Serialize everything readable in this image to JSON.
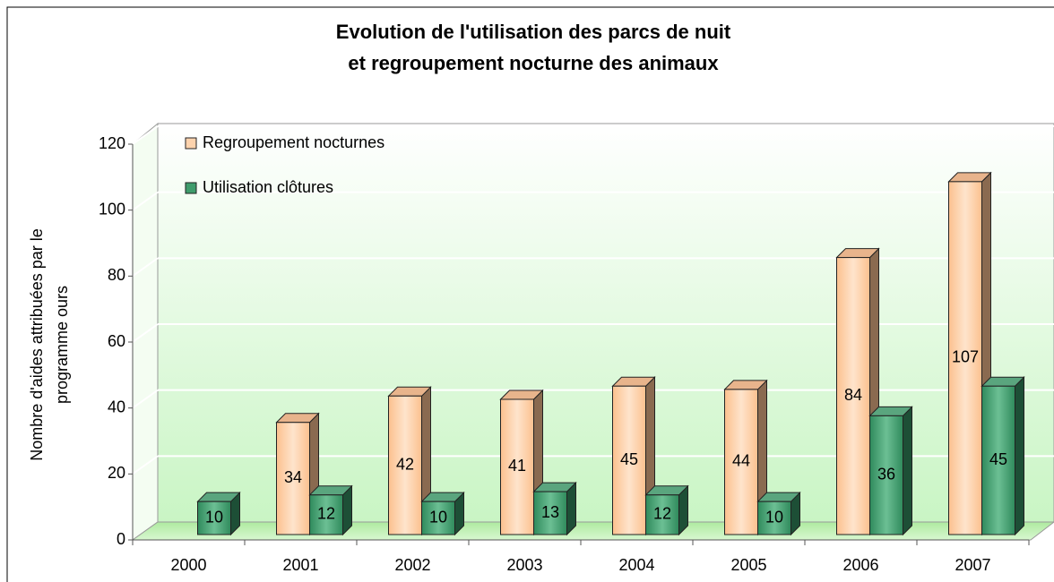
{
  "chart_data": {
    "type": "bar3d",
    "title": [
      "Evolution de l'utilisation des parcs de nuit",
      "et regroupement nocturne des animaux"
    ],
    "ylabel": [
      "Nombre d'aides attribuées par le",
      "programme ours"
    ],
    "categories": [
      "2000",
      "2001",
      "2002",
      "2003",
      "2004",
      "2005",
      "2006",
      "2007"
    ],
    "series": [
      {
        "name": "Regroupement nocturnes",
        "color": "#fcc08e",
        "values": [
          null,
          34,
          42,
          41,
          45,
          44,
          84,
          107
        ]
      },
      {
        "name": "Utilisation clôtures",
        "color": "#2f8a5c",
        "values": [
          10,
          12,
          10,
          13,
          12,
          10,
          36,
          45
        ]
      }
    ],
    "ylim": [
      0,
      120
    ],
    "yticks": [
      0,
      20,
      40,
      60,
      80,
      100,
      120
    ],
    "grid": true,
    "legend": "top-left"
  }
}
